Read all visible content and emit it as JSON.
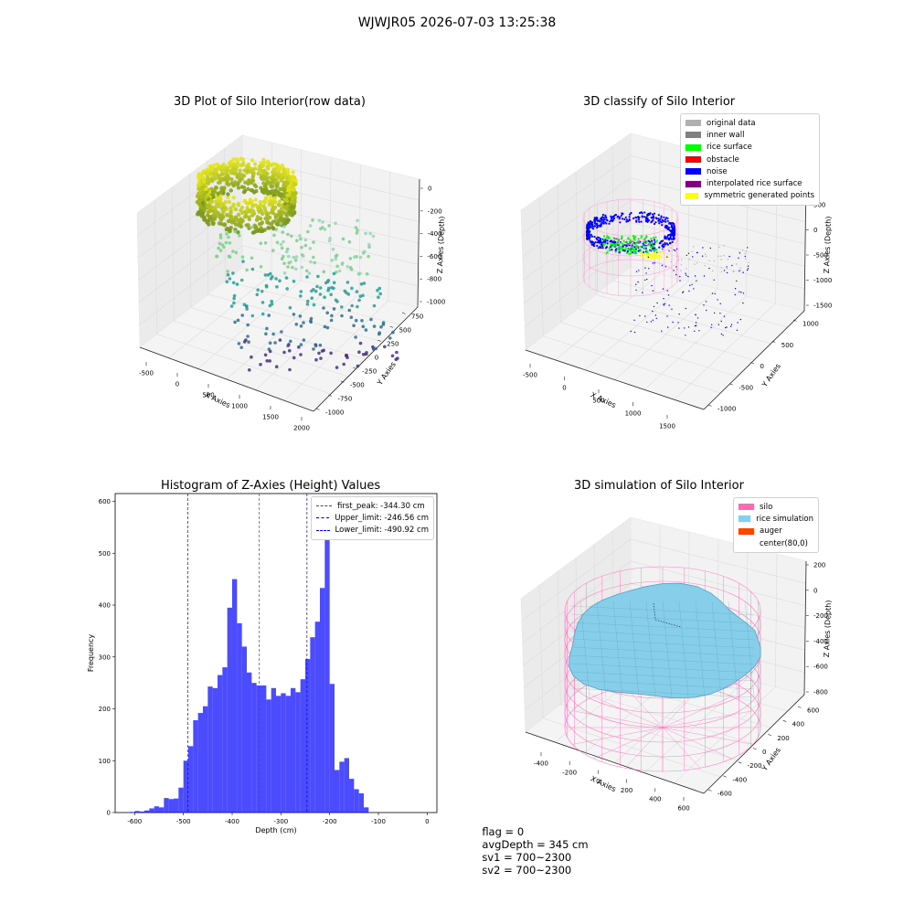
{
  "figure": {
    "title": "WJWJR05 2026-07-03 13:25:38"
  },
  "panels": {
    "raw": {
      "title": "3D Plot of Silo Interior(row data)",
      "xlabel": "X Axies",
      "ylabel": "Y Axies",
      "zlabel": "Z Axies (Depth)",
      "xticks": [
        "-500",
        "0",
        "500",
        "1000",
        "1500",
        "2000"
      ],
      "yticks": [
        "-1000",
        "-750",
        "-500",
        "-250",
        "0",
        "250",
        "500",
        "750"
      ],
      "zticks": [
        "0",
        "-200",
        "-400",
        "-600",
        "-800",
        "-1000"
      ]
    },
    "classify": {
      "title": "3D classify of Silo Interior",
      "xlabel": "X Axies",
      "ylabel": "Y Axies",
      "zlabel": "Z Axies (Depth)",
      "xticks": [
        "-500",
        "0",
        "500",
        "1000",
        "1500"
      ],
      "yticks": [
        "-1000",
        "-500",
        "0",
        "500",
        "1000"
      ],
      "zticks": [
        "500",
        "0",
        "-500",
        "-1000",
        "-1500"
      ],
      "legend": [
        {
          "label": "original data",
          "color": "#b0b0b0"
        },
        {
          "label": "inner wall",
          "color": "#808080"
        },
        {
          "label": "rice surface",
          "color": "#00ff00"
        },
        {
          "label": "obstacle",
          "color": "#ff0000"
        },
        {
          "label": "noise",
          "color": "#0000ff"
        },
        {
          "label": "interpolated rice surface",
          "color": "#800080"
        },
        {
          "label": "symmetric generated points",
          "color": "#ffff00"
        }
      ]
    },
    "simulation": {
      "title": "3D simulation of Silo Interior",
      "xlabel": "X Axies",
      "ylabel": "Y Axies",
      "zlabel": "Z Axies (Depth)",
      "xticks": [
        "-400",
        "-200",
        "0",
        "200",
        "400",
        "600"
      ],
      "yticks": [
        "-600",
        "-400",
        "-200",
        "0",
        "200",
        "400",
        "600"
      ],
      "zticks": [
        "200",
        "0",
        "-200",
        "-400",
        "-600",
        "-800"
      ],
      "legend": [
        {
          "label": "silo",
          "color": "#ff69b4"
        },
        {
          "label": "rice simulation",
          "color": "#87ceeb"
        },
        {
          "label": "auger",
          "color": "#ff4500"
        },
        {
          "label": "center(80,0)",
          "color": "#ffffff"
        }
      ]
    }
  },
  "footer": {
    "flag": "flag = 0",
    "avg": "avgDepth = 345 cm",
    "sv1": "sv1 = 700~2300",
    "sv2": "sv2 = 700~2300"
  },
  "chart_data": [
    {
      "type": "scatter",
      "title": "3D Plot of Silo Interior(row data)",
      "xlabel": "X Axies",
      "ylabel": "Y Axies",
      "zlabel": "Z Axies (Depth)",
      "xlim": [
        -600,
        2000
      ],
      "ylim": [
        -1000,
        800
      ],
      "zlim": [
        -1100,
        0
      ]
    },
    {
      "type": "scatter",
      "title": "3D classify of Silo Interior",
      "xlabel": "X Axies",
      "ylabel": "Y Axies",
      "zlabel": "Z Axies (Depth)",
      "xlim": [
        -600,
        1700
      ],
      "ylim": [
        -1100,
        1000
      ],
      "zlim": [
        -1600,
        500
      ],
      "legend_position": "upper right"
    },
    {
      "type": "bar",
      "title": "Histogram of Z-Axies (Height) Values",
      "xlabel": "Depth (cm)",
      "ylabel": "Frequency",
      "xlim": [
        -640,
        20
      ],
      "ylim": [
        0,
        615
      ],
      "xticks": [
        -600,
        -500,
        -400,
        -300,
        -200,
        -100,
        0
      ],
      "yticks": [
        0,
        100,
        200,
        300,
        400,
        500,
        600
      ],
      "bin_start": -610,
      "bin_width": 10,
      "values": [
        1,
        3,
        2,
        4,
        8,
        12,
        10,
        28,
        26,
        27,
        48,
        100,
        128,
        178,
        192,
        205,
        243,
        240,
        265,
        280,
        395,
        450,
        365,
        320,
        270,
        250,
        245,
        245,
        218,
        240,
        225,
        230,
        225,
        240,
        232,
        257,
        296,
        338,
        368,
        433,
        580,
        248,
        82,
        98,
        105,
        65,
        45,
        37,
        10
      ],
      "color": "#0000ff",
      "lines": [
        {
          "label": "first_peak: -344.30 cm",
          "x": -344.3,
          "color": "#ff0000"
        },
        {
          "label": "Upper_limit: -246.56 cm",
          "x": -246.56,
          "color": "#0000ff"
        },
        {
          "label": "Lower_limit: -490.92 cm",
          "x": -490.92,
          "color": "#0000ff"
        }
      ],
      "legend_position": "upper right"
    },
    {
      "type": "surface",
      "title": "3D simulation of Silo Interior",
      "xlabel": "X Axies",
      "ylabel": "Y Axies",
      "zlabel": "Z Axies (Depth)",
      "xlim": [
        -500,
        700
      ],
      "ylim": [
        -700,
        700
      ],
      "zlim": [
        -850,
        300
      ],
      "legend_position": "upper right"
    }
  ]
}
